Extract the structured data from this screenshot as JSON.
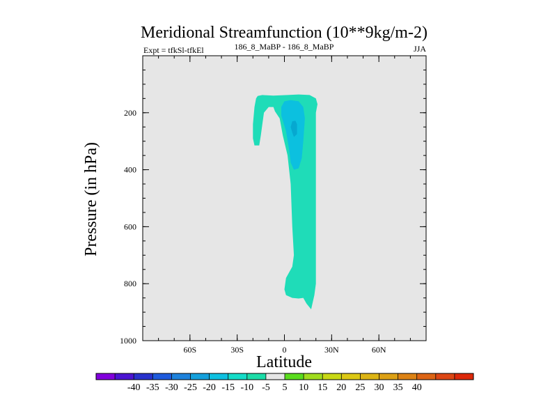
{
  "chart_data": {
    "type": "contour",
    "title": "Meridional Streamfunction (10**9kg/m-2)",
    "subtitle_left": "Expt = tfkSl-tfkEl",
    "subtitle_center": "186_8_MaBP - 186_8_MaBP",
    "subtitle_right": "JJA",
    "xlabel": "Latitude",
    "ylabel": "Pressure (in hPa)",
    "xlim": [
      -90,
      90
    ],
    "ylim": [
      1000,
      0
    ],
    "x_ticks": [
      {
        "value": -60,
        "label": "60S"
      },
      {
        "value": -30,
        "label": "30S"
      },
      {
        "value": 0,
        "label": "0"
      },
      {
        "value": 30,
        "label": "30N"
      },
      {
        "value": 60,
        "label": "60N"
      }
    ],
    "y_ticks": [
      {
        "value": 200,
        "label": "200"
      },
      {
        "value": 400,
        "label": "400"
      },
      {
        "value": 600,
        "label": "600"
      },
      {
        "value": 800,
        "label": "800"
      },
      {
        "value": 1000,
        "label": "1000"
      }
    ],
    "y_minor_step": 50,
    "x_minor_step": 10,
    "plot_background": "#e6e6e6",
    "contour_regions": [
      {
        "name": "outer-band",
        "range": "-10 to -5",
        "color": "#1fdcb8",
        "points": [
          [
            -17,
            141
          ],
          [
            -14,
            138
          ],
          [
            -7,
            140
          ],
          [
            2,
            138
          ],
          [
            9,
            136
          ],
          [
            16,
            138
          ],
          [
            20,
            150
          ],
          [
            21,
            170
          ],
          [
            20,
            200
          ],
          [
            20,
            300
          ],
          [
            20,
            500
          ],
          [
            20,
            700
          ],
          [
            20,
            800
          ],
          [
            19,
            840
          ],
          [
            17,
            890
          ],
          [
            14,
            870
          ],
          [
            12,
            850
          ],
          [
            9,
            852
          ],
          [
            5,
            850
          ],
          [
            1,
            840
          ],
          [
            0,
            820
          ],
          [
            1,
            780
          ],
          [
            5,
            740
          ],
          [
            6,
            700
          ],
          [
            5,
            600
          ],
          [
            4,
            450
          ],
          [
            2,
            350
          ],
          [
            -1,
            280
          ],
          [
            -3,
            220
          ],
          [
            -6,
            195
          ],
          [
            -7,
            180
          ],
          [
            -10,
            180
          ],
          [
            -13,
            200
          ],
          [
            -14,
            240
          ],
          [
            -15,
            280
          ],
          [
            -16,
            315
          ],
          [
            -19,
            315
          ],
          [
            -20,
            290
          ],
          [
            -20,
            240
          ],
          [
            -19,
            180
          ],
          [
            -18,
            150
          ]
        ]
      },
      {
        "name": "inner-core",
        "range": "-15 to -10",
        "color": "#0cc0df",
        "points": [
          [
            -2,
            180
          ],
          [
            0,
            160
          ],
          [
            4,
            156
          ],
          [
            9,
            160
          ],
          [
            12,
            180
          ],
          [
            13,
            220
          ],
          [
            12,
            300
          ],
          [
            11,
            360
          ],
          [
            9,
            395
          ],
          [
            6,
            400
          ],
          [
            4,
            375
          ],
          [
            3,
            330
          ],
          [
            1,
            265
          ],
          [
            -2,
            210
          ]
        ]
      },
      {
        "name": "center-streak",
        "range": "-20 to -15",
        "color": "#06a8d0",
        "points": [
          [
            5,
            230
          ],
          [
            7,
            228
          ],
          [
            8,
            240
          ],
          [
            8,
            275
          ],
          [
            6,
            285
          ],
          [
            5,
            270
          ],
          [
            4,
            250
          ]
        ]
      }
    ],
    "colorbar": {
      "colors": [
        "#8200dc",
        "#4b14d2",
        "#2832cc",
        "#1e5adc",
        "#1e82dc",
        "#14a0dc",
        "#0ec0e0",
        "#14dcc8",
        "#1cdca8",
        "#e6e6e6",
        "#5adc1e",
        "#a0dc1e",
        "#c8d814",
        "#dcc814",
        "#dcb414",
        "#dca014",
        "#dc8214",
        "#dc6414",
        "#dc4614",
        "#dc280a"
      ],
      "labels": [
        "-40",
        "-35",
        "-30",
        "-25",
        "-20",
        "-15",
        "-10",
        "-5",
        "5",
        "10",
        "15",
        "20",
        "25",
        "30",
        "35",
        "40"
      ]
    }
  }
}
